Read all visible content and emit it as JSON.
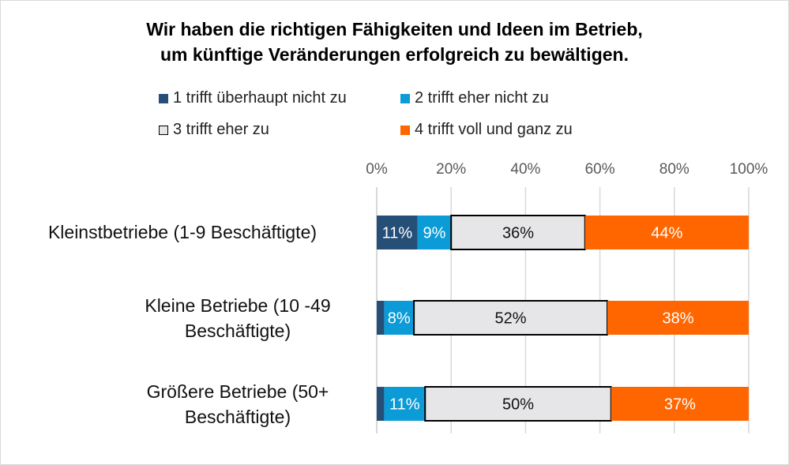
{
  "chart_data": {
    "type": "bar",
    "orientation": "horizontal",
    "stacked": "percent",
    "title": [
      "Wir haben die richtigen Fähigkeiten und Ideen im Betrieb,",
      "um künftige Veränderungen erfolgreich zu bewältigen."
    ],
    "categories": [
      "Kleinstbetriebe (1-9 Beschäftigte)",
      "Kleine Betriebe (10 -49 Beschäftigte)",
      "Größere Betriebe (50+ Beschäftigte)"
    ],
    "series": [
      {
        "name": "1 trifft überhaupt nicht zu",
        "color": "#264f78",
        "values": [
          11,
          2,
          2
        ],
        "labels": [
          "11%",
          "",
          ""
        ]
      },
      {
        "name": "2 trifft eher nicht zu",
        "color": "#0b9bd7",
        "values": [
          9,
          8,
          11
        ],
        "labels": [
          "9%",
          "8%",
          "11%"
        ]
      },
      {
        "name": "3 trifft eher zu",
        "color": "#e6e6e8",
        "values": [
          36,
          52,
          50
        ],
        "labels": [
          "36%",
          "52%",
          "50%"
        ]
      },
      {
        "name": "4 trifft voll und ganz zu",
        "color": "#ff6600",
        "values": [
          44,
          38,
          37
        ],
        "labels": [
          "44%",
          "38%",
          "37%"
        ]
      }
    ],
    "xlim": [
      0,
      100
    ],
    "xticks": [
      "0%",
      "20%",
      "40%",
      "60%",
      "80%",
      "100%"
    ],
    "grid": true,
    "legend": "top"
  }
}
